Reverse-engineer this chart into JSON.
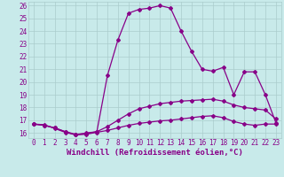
{
  "xlabel": "Windchill (Refroidissement éolien,°C)",
  "xlim": [
    -0.5,
    23.5
  ],
  "ylim": [
    15.6,
    26.3
  ],
  "yticks": [
    16,
    17,
    18,
    19,
    20,
    21,
    22,
    23,
    24,
    25,
    26
  ],
  "xticks": [
    0,
    1,
    2,
    3,
    4,
    5,
    6,
    7,
    8,
    9,
    10,
    11,
    12,
    13,
    14,
    15,
    16,
    17,
    18,
    19,
    20,
    21,
    22,
    23
  ],
  "background_color": "#c8eaea",
  "grid_color": "#aacccc",
  "line_color": "#880088",
  "line1_y": [
    16.7,
    16.65,
    16.35,
    16.05,
    15.85,
    15.9,
    16.05,
    16.2,
    16.4,
    16.6,
    16.75,
    16.85,
    16.95,
    17.0,
    17.1,
    17.2,
    17.3,
    17.35,
    17.2,
    16.9,
    16.7,
    16.6,
    16.7,
    16.7
  ],
  "line2_y": [
    16.7,
    16.6,
    16.4,
    16.1,
    15.9,
    15.95,
    16.1,
    16.5,
    17.0,
    17.5,
    17.9,
    18.1,
    18.3,
    18.4,
    18.5,
    18.55,
    18.6,
    18.65,
    18.5,
    18.2,
    18.0,
    17.9,
    17.8,
    17.1
  ],
  "line3_y": [
    16.7,
    16.6,
    16.4,
    16.1,
    15.85,
    16.0,
    16.1,
    20.5,
    23.3,
    25.4,
    25.7,
    25.8,
    26.0,
    25.8,
    24.0,
    22.4,
    21.0,
    20.85,
    21.15,
    19.0,
    20.8,
    20.8,
    19.0,
    16.8
  ],
  "fontsize_tick": 5.5,
  "fontsize_xlabel": 6.5,
  "marker": "D",
  "markersize": 2.0,
  "linewidth": 0.9
}
